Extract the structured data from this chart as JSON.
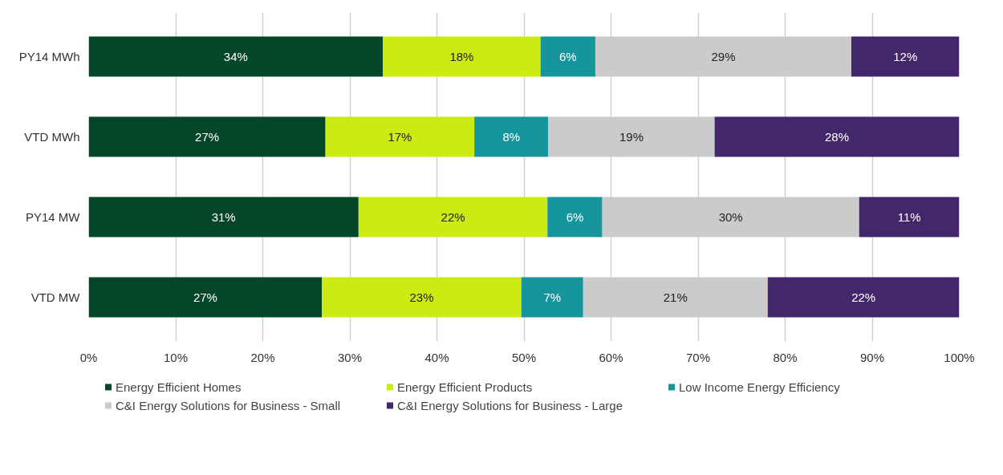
{
  "chart_data": {
    "type": "bar",
    "orientation": "horizontal",
    "stacked": true,
    "categories": [
      "PY14 MWh",
      "VTD MWh",
      "PY14 MW",
      "VTD MW"
    ],
    "series": [
      {
        "name": "Energy Efficient Homes",
        "color": "#034628",
        "values": [
          33.8,
          27.2,
          31.0,
          26.8
        ],
        "value_labels": [
          "34%",
          "27%",
          "31%",
          "27%"
        ]
      },
      {
        "name": "Energy Efficient Products",
        "color": "#cbeb13",
        "values": [
          18.1,
          17.1,
          21.7,
          22.9
        ],
        "value_labels": [
          "18%",
          "17%",
          "22%",
          "23%"
        ]
      },
      {
        "name": "Low Income Energy Efficiency",
        "color": "#17959d",
        "values": [
          6.3,
          8.5,
          6.3,
          7.1
        ],
        "value_labels": [
          "6%",
          "8%",
          "6%",
          "7%"
        ]
      },
      {
        "name": "C&I Energy Solutions for Business - Small",
        "color": "#cbcbcb",
        "values": [
          29.4,
          19.1,
          29.5,
          21.2
        ],
        "value_labels": [
          "29%",
          "19%",
          "30%",
          "21%"
        ]
      },
      {
        "name": "C&I Energy Solutions for Business - Large",
        "color": "#42276a",
        "values": [
          12.4,
          28.1,
          11.5,
          22.0
        ],
        "value_labels": [
          "12%",
          "28%",
          "11%",
          "22%"
        ]
      }
    ],
    "xlim": [
      0,
      100
    ],
    "xticks": [
      {
        "value": 0,
        "label": "0%"
      },
      {
        "value": 10,
        "label": "10%"
      },
      {
        "value": 20,
        "label": "20%"
      },
      {
        "value": 30,
        "label": "30%"
      },
      {
        "value": 40,
        "label": "40%"
      },
      {
        "value": 50,
        "label": "50%"
      },
      {
        "value": 60,
        "label": "60%"
      },
      {
        "value": 70,
        "label": "70%"
      },
      {
        "value": 80,
        "label": "80%"
      },
      {
        "value": 90,
        "label": "90%"
      },
      {
        "value": 100,
        "label": "100%"
      }
    ],
    "grid": "x",
    "legend": "bottom"
  }
}
